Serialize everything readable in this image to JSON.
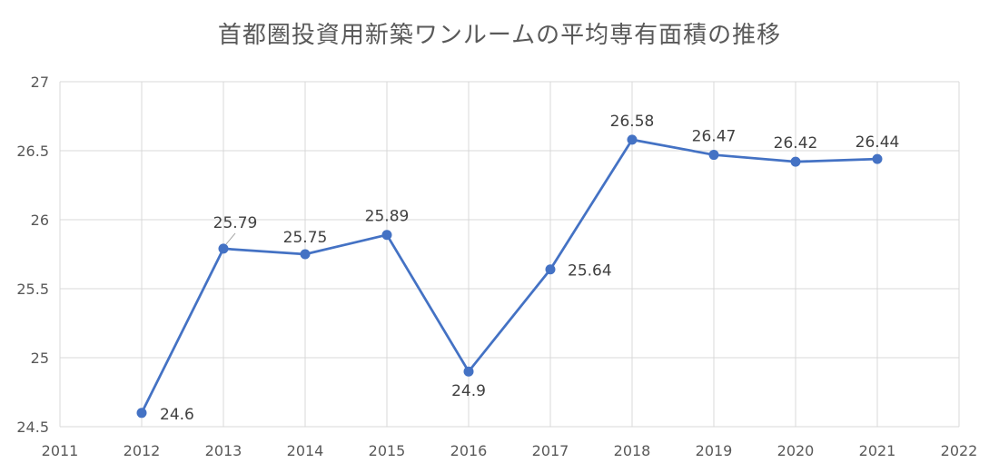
{
  "chart_data": {
    "type": "line",
    "title": "首都圏投資用新築ワンルームの平均専有面積の推移",
    "xlabel": "",
    "ylabel": "",
    "x": [
      2012,
      2013,
      2014,
      2015,
      2016,
      2017,
      2018,
      2019,
      2020,
      2021
    ],
    "series": [
      {
        "values": [
          24.6,
          25.79,
          25.75,
          25.89,
          24.9,
          25.64,
          26.58,
          26.47,
          26.42,
          26.44
        ],
        "labels": [
          "24.6",
          "25.79",
          "25.75",
          "25.89",
          "24.9",
          "25.64",
          "26.58",
          "26.47",
          "26.42",
          "26.44"
        ],
        "color": "#4472C4"
      }
    ],
    "xlim": [
      2011,
      2022
    ],
    "ylim": [
      24.5,
      27
    ],
    "xticks": [
      "2011",
      "2012",
      "2013",
      "2014",
      "2015",
      "2016",
      "2017",
      "2018",
      "2019",
      "2020",
      "2021",
      "2022"
    ],
    "yticks": [
      "24.5",
      "25",
      "25.5",
      "26",
      "26.5",
      "27"
    ],
    "grid": true,
    "legend": "none"
  }
}
